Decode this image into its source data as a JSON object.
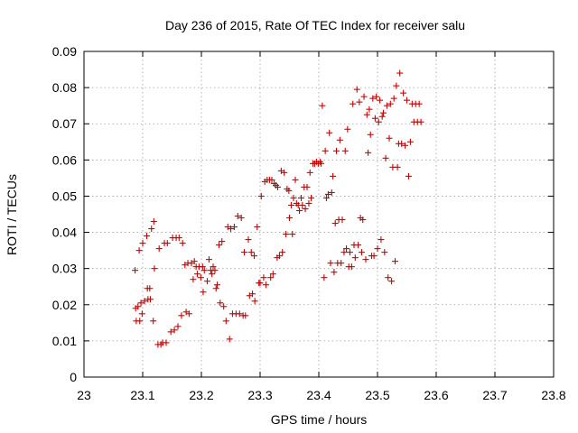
{
  "chart_data": {
    "type": "scatter",
    "title": "Day 236 of 2015, Rate Of TEC Index for receiver salu",
    "xlabel": "GPS time / hours",
    "ylabel": "ROTI / TECUs",
    "xlim": [
      23.0,
      23.8
    ],
    "ylim": [
      0.0,
      0.09
    ],
    "xticks": [
      "23",
      "23.1",
      "23.2",
      "23.3",
      "23.4",
      "23.5",
      "23.6",
      "23.7",
      "23.8"
    ],
    "yticks": [
      "0",
      "0.01",
      "0.02",
      "0.03",
      "0.04",
      "0.05",
      "0.06",
      "0.07",
      "0.08",
      "0.09"
    ],
    "grid": true,
    "marker": "+",
    "color": "#cc0000",
    "series": [
      {
        "name": "ROTI",
        "points": [
          [
            23.087,
            0.0295
          ],
          [
            23.088,
            0.019
          ],
          [
            23.089,
            0.0155
          ],
          [
            23.092,
            0.0195
          ],
          [
            23.094,
            0.035
          ],
          [
            23.095,
            0.0155
          ],
          [
            23.097,
            0.0205
          ],
          [
            23.099,
            0.0175
          ],
          [
            23.1,
            0.037
          ],
          [
            23.103,
            0.021
          ],
          [
            23.107,
            0.039
          ],
          [
            23.108,
            0.0245
          ],
          [
            23.109,
            0.0215
          ],
          [
            23.112,
            0.0245
          ],
          [
            23.113,
            0.0215
          ],
          [
            23.115,
            0.041
          ],
          [
            23.118,
            0.0155
          ],
          [
            23.119,
            0.043
          ],
          [
            23.12,
            0.03
          ],
          [
            23.126,
            0.009
          ],
          [
            23.128,
            0.0355
          ],
          [
            23.131,
            0.009
          ],
          [
            23.134,
            0.0095
          ],
          [
            23.137,
            0.037
          ],
          [
            23.14,
            0.0095
          ],
          [
            23.142,
            0.037
          ],
          [
            23.148,
            0.0125
          ],
          [
            23.151,
            0.0385
          ],
          [
            23.154,
            0.013
          ],
          [
            23.157,
            0.0385
          ],
          [
            23.16,
            0.014
          ],
          [
            23.162,
            0.0385
          ],
          [
            23.166,
            0.017
          ],
          [
            23.168,
            0.037
          ],
          [
            23.172,
            0.031
          ],
          [
            23.174,
            0.018
          ],
          [
            23.177,
            0.0315
          ],
          [
            23.179,
            0.0175
          ],
          [
            23.183,
            0.0315
          ],
          [
            23.186,
            0.027
          ],
          [
            23.188,
            0.032
          ],
          [
            23.191,
            0.0305
          ],
          [
            23.193,
            0.0285
          ],
          [
            23.196,
            0.0305
          ],
          [
            23.199,
            0.0275
          ],
          [
            23.202,
            0.0305
          ],
          [
            23.203,
            0.0235
          ],
          [
            23.205,
            0.0295
          ],
          [
            23.21,
            0.0265
          ],
          [
            23.213,
            0.0325
          ],
          [
            23.216,
            0.0295
          ],
          [
            23.218,
            0.0285
          ],
          [
            23.22,
            0.0305
          ],
          [
            23.223,
            0.0295
          ],
          [
            23.225,
            0.0245
          ],
          [
            23.227,
            0.0255
          ],
          [
            23.23,
            0.0365
          ],
          [
            23.232,
            0.0205
          ],
          [
            23.235,
            0.0375
          ],
          [
            23.238,
            0.0195
          ],
          [
            23.242,
            0.0155
          ],
          [
            23.245,
            0.0415
          ],
          [
            23.248,
            0.0105
          ],
          [
            23.25,
            0.041
          ],
          [
            23.253,
            0.0175
          ],
          [
            23.256,
            0.0415
          ],
          [
            23.259,
            0.0175
          ],
          [
            23.262,
            0.0445
          ],
          [
            23.265,
            0.0175
          ],
          [
            23.268,
            0.044
          ],
          [
            23.271,
            0.017
          ],
          [
            23.273,
            0.0345
          ],
          [
            23.275,
            0.017
          ],
          [
            23.28,
            0.038
          ],
          [
            23.282,
            0.0225
          ],
          [
            23.285,
            0.0345
          ],
          [
            23.287,
            0.023
          ],
          [
            23.29,
            0.0335
          ],
          [
            23.291,
            0.021
          ],
          [
            23.295,
            0.0415
          ],
          [
            23.298,
            0.026
          ],
          [
            23.3,
            0.026
          ],
          [
            23.302,
            0.05
          ],
          [
            23.306,
            0.0275
          ],
          [
            23.308,
            0.054
          ],
          [
            23.31,
            0.0255
          ],
          [
            23.312,
            0.0545
          ],
          [
            23.316,
            0.0545
          ],
          [
            23.318,
            0.0275
          ],
          [
            23.32,
            0.0545
          ],
          [
            23.322,
            0.0285
          ],
          [
            23.324,
            0.0535
          ],
          [
            23.327,
            0.053
          ],
          [
            23.329,
            0.033
          ],
          [
            23.33,
            0.0525
          ],
          [
            23.333,
            0.0335
          ],
          [
            23.336,
            0.057
          ],
          [
            23.338,
            0.0345
          ],
          [
            23.341,
            0.0565
          ],
          [
            23.344,
            0.0395
          ],
          [
            23.346,
            0.052
          ],
          [
            23.349,
            0.0515
          ],
          [
            23.35,
            0.044
          ],
          [
            23.353,
            0.0475
          ],
          [
            23.355,
            0.0395
          ],
          [
            23.357,
            0.0495
          ],
          [
            23.36,
            0.0545
          ],
          [
            23.362,
            0.048
          ],
          [
            23.365,
            0.0475
          ],
          [
            23.367,
            0.046
          ],
          [
            23.37,
            0.0495
          ],
          [
            23.372,
            0.0475
          ],
          [
            23.375,
            0.0525
          ],
          [
            23.377,
            0.0465
          ],
          [
            23.38,
            0.0525
          ],
          [
            23.383,
            0.048
          ],
          [
            23.385,
            0.0565
          ],
          [
            23.387,
            0.0495
          ],
          [
            23.39,
            0.059
          ],
          [
            23.393,
            0.059
          ],
          [
            23.396,
            0.0595
          ],
          [
            23.399,
            0.059
          ],
          [
            23.402,
            0.0595
          ],
          [
            23.404,
            0.059
          ],
          [
            23.406,
            0.075
          ],
          [
            23.409,
            0.0275
          ],
          [
            23.411,
            0.0625
          ],
          [
            23.413,
            0.0495
          ],
          [
            23.416,
            0.0505
          ],
          [
            23.418,
            0.0675
          ],
          [
            23.42,
            0.0315
          ],
          [
            23.422,
            0.051
          ],
          [
            23.424,
            0.0555
          ],
          [
            23.426,
            0.029
          ],
          [
            23.428,
            0.0425
          ],
          [
            23.43,
            0.0625
          ],
          [
            23.432,
            0.0315
          ],
          [
            23.434,
            0.0435
          ],
          [
            23.436,
            0.0655
          ],
          [
            23.438,
            0.0315
          ],
          [
            23.44,
            0.0435
          ],
          [
            23.443,
            0.0345
          ],
          [
            23.445,
            0.0625
          ],
          [
            23.447,
            0.0355
          ],
          [
            23.449,
            0.0685
          ],
          [
            23.451,
            0.0305
          ],
          [
            23.453,
            0.0345
          ],
          [
            23.456,
            0.0305
          ],
          [
            23.458,
            0.0755
          ],
          [
            23.46,
            0.0365
          ],
          [
            23.462,
            0.033
          ],
          [
            23.465,
            0.0795
          ],
          [
            23.467,
            0.0365
          ],
          [
            23.469,
            0.076
          ],
          [
            23.471,
            0.044
          ],
          [
            23.473,
            0.0345
          ],
          [
            23.475,
            0.0435
          ],
          [
            23.477,
            0.0775
          ],
          [
            23.48,
            0.0325
          ],
          [
            23.482,
            0.0725
          ],
          [
            23.484,
            0.062
          ],
          [
            23.486,
            0.074
          ],
          [
            23.488,
            0.067
          ],
          [
            23.49,
            0.0335
          ],
          [
            23.492,
            0.077
          ],
          [
            23.494,
            0.0335
          ],
          [
            23.496,
            0.0715
          ],
          [
            23.498,
            0.0775
          ],
          [
            23.5,
            0.0355
          ],
          [
            23.502,
            0.0705
          ],
          [
            23.504,
            0.0765
          ],
          [
            23.506,
            0.038
          ],
          [
            23.508,
            0.072
          ],
          [
            23.51,
            0.073
          ],
          [
            23.512,
            0.0345
          ],
          [
            23.514,
            0.0605
          ],
          [
            23.516,
            0.075
          ],
          [
            23.518,
            0.0275
          ],
          [
            23.52,
            0.066
          ],
          [
            23.522,
            0.0755
          ],
          [
            23.524,
            0.0265
          ],
          [
            23.526,
            0.058
          ],
          [
            23.528,
            0.077
          ],
          [
            23.53,
            0.032
          ],
          [
            23.532,
            0.0805
          ],
          [
            23.534,
            0.058
          ],
          [
            23.536,
            0.0645
          ],
          [
            23.538,
            0.084
          ],
          [
            23.541,
            0.0645
          ],
          [
            23.544,
            0.0785
          ],
          [
            23.547,
            0.064
          ],
          [
            23.55,
            0.0765
          ],
          [
            23.553,
            0.0555
          ],
          [
            23.556,
            0.065
          ],
          [
            23.559,
            0.0755
          ],
          [
            23.562,
            0.0705
          ],
          [
            23.565,
            0.0755
          ],
          [
            23.568,
            0.0705
          ],
          [
            23.571,
            0.0755
          ],
          [
            23.574,
            0.0705
          ]
        ]
      }
    ]
  }
}
